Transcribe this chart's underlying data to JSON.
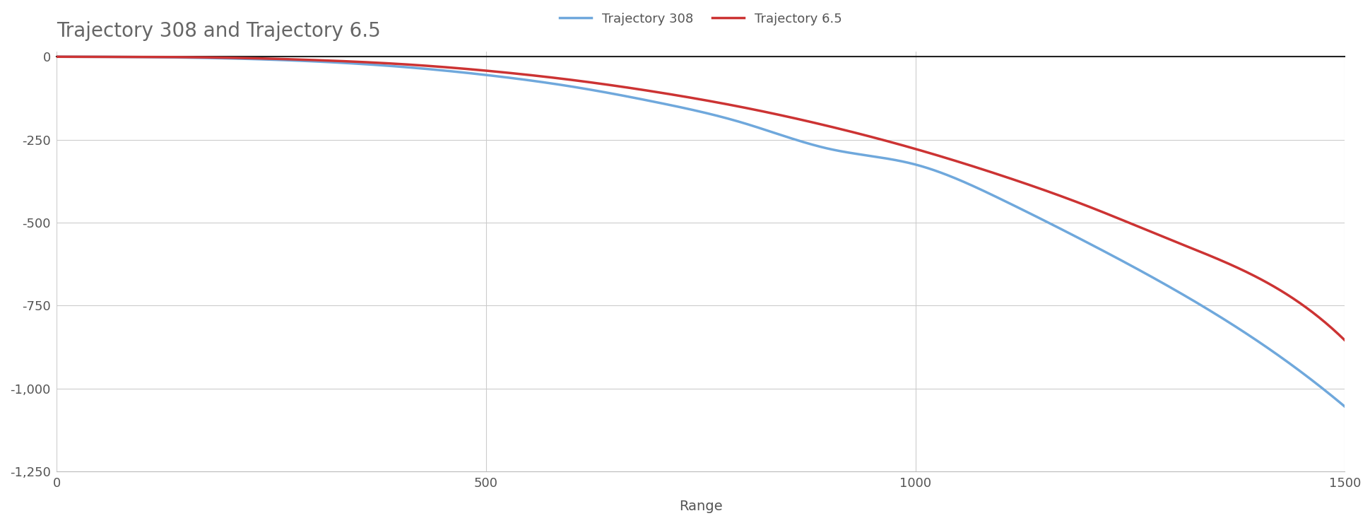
{
  "title": "Trajectory 308 and Trajectory 6.5",
  "xlabel": "Range",
  "ylabel": "",
  "legend_308": "Trajectory 308",
  "legend_65": "Trajectory 6.5",
  "color_308": "#6fa8dc",
  "color_65": "#cc3333",
  "xlim": [
    0,
    1500
  ],
  "ylim": [
    -1250,
    15
  ],
  "xticks": [
    0,
    500,
    1000,
    1500
  ],
  "yticks": [
    0,
    -250,
    -500,
    -750,
    -1000,
    -1250
  ],
  "title_color": "#666666",
  "axis_label_color": "#555555",
  "tick_color": "#555555",
  "grid_color": "#cccccc",
  "background_color": "#ffffff",
  "line_width": 2.5,
  "title_fontsize": 20,
  "label_fontsize": 14,
  "tick_fontsize": 13,
  "legend_fontsize": 13,
  "top_spine_color": "#222222",
  "top_spine_width": 1.5,
  "traj_308_x": [
    0,
    100,
    200,
    300,
    400,
    500,
    600,
    700,
    800,
    900,
    1000,
    1100,
    1200,
    1300,
    1400,
    1500
  ],
  "traj_308_y": [
    0,
    -1,
    -5,
    -14,
    -30,
    -55,
    -90,
    -138,
    -200,
    -278,
    -325,
    -430,
    -560,
    -700,
    -860,
    -1055
  ],
  "traj_65_x": [
    0,
    100,
    200,
    300,
    400,
    500,
    600,
    700,
    800,
    900,
    1000,
    1100,
    1200,
    1300,
    1400,
    1500
  ],
  "traj_65_y": [
    0,
    -0.5,
    -3,
    -10,
    -22,
    -42,
    -70,
    -107,
    -153,
    -210,
    -278,
    -358,
    -450,
    -555,
    -668,
    -855
  ]
}
